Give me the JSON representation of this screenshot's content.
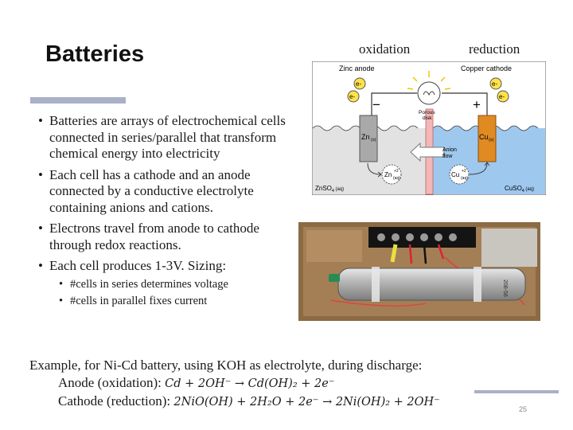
{
  "slide": {
    "title": "Batteries",
    "page_number": "25",
    "bullets": [
      "Batteries are arrays of electrochemical cells connected in series/parallel that transform chemical energy into electricity",
      "Each cell has a cathode and an anode connected by a conductive electrolyte containing anions and cations.",
      "Electrons travel from anode to cathode through redox reactions.",
      "Each cell produces 1-3V. Sizing:"
    ],
    "sub_bullets": [
      "#cells in series determines voltage",
      "#cells in parallel fixes current"
    ],
    "example": {
      "intro": "Example, for Ni-Cd battery, using KOH as electrolyte, during discharge:",
      "anode_label": "Anode (oxidation): ",
      "anode_eq": "Cd + 2OH⁻ → Cd(OH)₂ + 2e⁻",
      "cathode_label": "Cathode  (reduction): ",
      "cathode_eq": "2NiO(OH) + 2H₂O + 2e⁻ → 2Ni(OH)₂ + 2OH⁻"
    }
  },
  "diagram": {
    "label_oxidation": "oxidation",
    "label_reduction": "reduction",
    "zinc_anode": "Zinc anode",
    "copper_cathode": "Copper cathode",
    "electron": "e-",
    "minus": "−",
    "plus": "+",
    "porous_disk_1": "Porous",
    "porous_disk_2": "disk",
    "anion_flow_1": "Anion",
    "anion_flow_2": "flow",
    "zn_electrode": "Zn",
    "cu_electrode": "Cu",
    "state_s": "(s)",
    "zn_ion": "Zn",
    "cu_ion": "Cu",
    "ion_charge": "+2",
    "state_aq": "(aq)",
    "znso4": "ZnSO",
    "cuso4": "CuSO",
    "sub4": "4",
    "colors": {
      "left_solution": "#e2e2e2",
      "right_solution": "#9ec8ee",
      "zinc": "#a9a9a9",
      "copper": "#e08a22",
      "porous_disk": "#f4b6b6",
      "bulb": "#ffe34a"
    }
  },
  "photo": {
    "description_label": "Ni-Cd cell wired to terminal block",
    "cell_marking": "208-58"
  }
}
